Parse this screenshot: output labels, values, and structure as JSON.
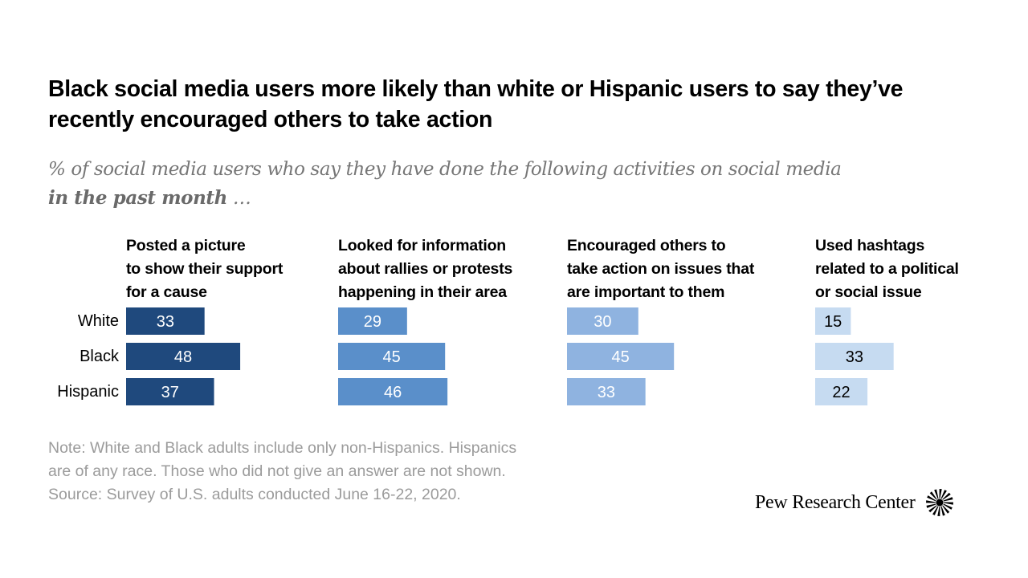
{
  "title": "Black social media users more likely than white or Hispanic users to say they’ve recently encouraged others to take action",
  "subtitle": {
    "line1": "% of social media users who say they have done the following activities on social media",
    "bold": "in the past month",
    "ellipsis": " …"
  },
  "note": {
    "line1": "Note: White and Black adults include only non-Hispanics. Hispanics",
    "line2": "are of any race. Those who did not give an answer are not shown.",
    "line3": "Source: Survey of U.S. adults conducted June 16-22, 2020."
  },
  "logo": {
    "text": "Pew Research Center",
    "icon": "pew-sunburst-icon"
  },
  "chart_data": {
    "type": "bar",
    "orientation": "horizontal",
    "title": "Black social media users more likely than white or Hispanic users to say they’ve recently encouraged others to take action",
    "subtitle": "% of social media users who say they have done the following activities on social media in the past month …",
    "categories": [
      "White",
      "Black",
      "Hispanic"
    ],
    "series": [
      {
        "name": "Posted a picture\nto show their support\nfor a cause",
        "values": [
          33,
          48,
          37
        ],
        "color": "#1f497d",
        "label_color": "#ffffff"
      },
      {
        "name": "Looked for information\nabout rallies or protests\nhappening in their area",
        "values": [
          29,
          45,
          46
        ],
        "color": "#5a8fca",
        "label_color": "#ffffff"
      },
      {
        "name": "Encouraged others to\ntake action on issues that\nare important to them",
        "values": [
          30,
          45,
          33
        ],
        "color": "#8fb3e0",
        "label_color": "#ffffff"
      },
      {
        "name": "Used hashtags\nrelated to a political\nor social issue",
        "values": [
          15,
          33,
          22
        ],
        "color": "#c6dbf1",
        "label_color": "#000000"
      }
    ],
    "xlim": [
      0,
      100
    ],
    "grid": false,
    "legend": "none",
    "xlabel": "",
    "ylabel": ""
  }
}
